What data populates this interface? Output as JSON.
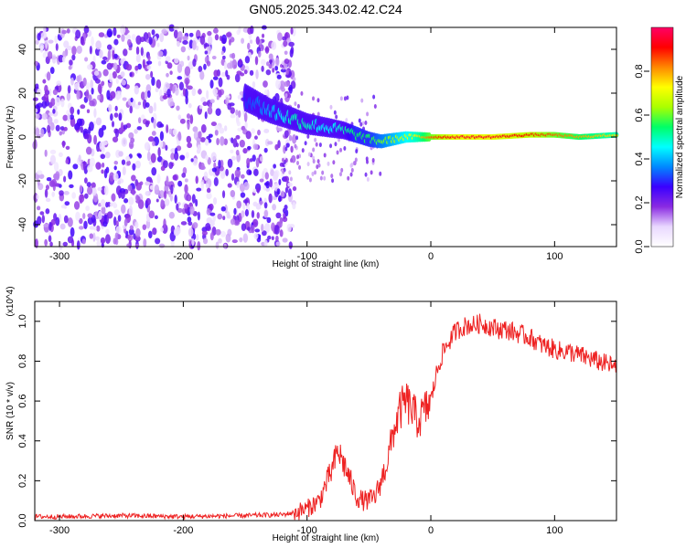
{
  "title": "GN05.2025.343.02.42.C24",
  "chart_data": [
    {
      "type": "heatmap",
      "xlabel": "Height of straight line (km)",
      "ylabel": "Frequency (Hz)",
      "xlim": [
        -320,
        150
      ],
      "ylim": [
        -50,
        50
      ],
      "xticks": [
        -300,
        -200,
        -100,
        0,
        100
      ],
      "xtick_labels": [
        "-300",
        "-200",
        "-100",
        "0",
        "100"
      ],
      "yticks": [
        -40,
        -20,
        0,
        20,
        40
      ],
      "ytick_labels": [
        "-40",
        "-20",
        "0",
        "20",
        "40"
      ],
      "colorbar": {
        "label": "Normalized spectral amplitude",
        "range": [
          0,
          1
        ],
        "ticks": [
          0.0,
          0.2,
          0.4,
          0.6,
          0.8
        ],
        "tick_labels": [
          "0.0",
          "0.2",
          "0.4",
          "0.6",
          "0.8"
        ],
        "colors": [
          "#ffffff",
          "#e9d8ff",
          "#8a2be2",
          "#3a00ff",
          "#0088ff",
          "#00ffff",
          "#00ff66",
          "#aaff00",
          "#ffff00",
          "#ff8800",
          "#ff0000",
          "#ff0066"
        ]
      },
      "noise_region": {
        "x_from": -320,
        "x_to": -110
      },
      "ridge": {
        "x": [
          -150,
          -140,
          -130,
          -120,
          -110,
          -100,
          -90,
          -80,
          -70,
          -60,
          -50,
          -40,
          -30,
          -20,
          -10,
          0,
          20,
          50,
          80,
          100,
          120,
          150
        ],
        "freq": [
          18,
          15,
          12,
          10,
          8,
          6,
          5,
          4,
          3,
          1,
          -1,
          -2,
          -1,
          0,
          0,
          0,
          0,
          0,
          1,
          1,
          0,
          1
        ],
        "amplitude": [
          0.3,
          0.35,
          0.4,
          0.45,
          0.5,
          0.5,
          0.45,
          0.45,
          0.5,
          0.55,
          0.55,
          0.6,
          0.65,
          0.7,
          0.75,
          0.85,
          0.95,
          0.95,
          0.9,
          0.85,
          0.8,
          0.75
        ]
      }
    },
    {
      "type": "line",
      "xlabel": "Height of straight line (km)",
      "ylabel": "SNR (10 * v/v)",
      "yscale_label": "(x10^4)",
      "xlim": [
        -320,
        150
      ],
      "ylim": [
        0,
        1.1
      ],
      "xticks": [
        -300,
        -200,
        -100,
        0,
        100
      ],
      "xtick_labels": [
        "-300",
        "-200",
        "-100",
        "0",
        "100"
      ],
      "yticks": [
        0.0,
        0.2,
        0.4,
        0.6,
        0.8,
        1.0
      ],
      "ytick_labels": [
        "0.0",
        "0.2",
        "0.4",
        "0.6",
        "0.8",
        "1.0"
      ],
      "series": [
        {
          "name": "SNR",
          "color": "#ee2222",
          "x": [
            -320,
            -300,
            -250,
            -200,
            -150,
            -120,
            -110,
            -100,
            -90,
            -85,
            -80,
            -75,
            -70,
            -65,
            -60,
            -55,
            -50,
            -45,
            -40,
            -35,
            -30,
            -25,
            -20,
            -15,
            -10,
            -5,
            0,
            5,
            10,
            15,
            20,
            25,
            30,
            35,
            40,
            45,
            50,
            55,
            60,
            65,
            70,
            75,
            80,
            85,
            90,
            95,
            100,
            105,
            110,
            115,
            120,
            125,
            130,
            135,
            140,
            145,
            150
          ],
          "y": [
            0.02,
            0.02,
            0.025,
            0.02,
            0.025,
            0.03,
            0.04,
            0.06,
            0.1,
            0.18,
            0.25,
            0.35,
            0.28,
            0.2,
            0.12,
            0.1,
            0.1,
            0.12,
            0.2,
            0.3,
            0.45,
            0.55,
            0.6,
            0.55,
            0.5,
            0.55,
            0.6,
            0.75,
            0.85,
            0.9,
            0.95,
            0.97,
            0.98,
            0.98,
            0.99,
            0.98,
            0.97,
            0.96,
            0.96,
            0.95,
            0.94,
            0.93,
            0.92,
            0.9,
            0.88,
            0.87,
            0.86,
            0.85,
            0.85,
            0.84,
            0.83,
            0.82,
            0.81,
            0.8,
            0.79,
            0.78,
            0.76
          ]
        }
      ]
    }
  ]
}
